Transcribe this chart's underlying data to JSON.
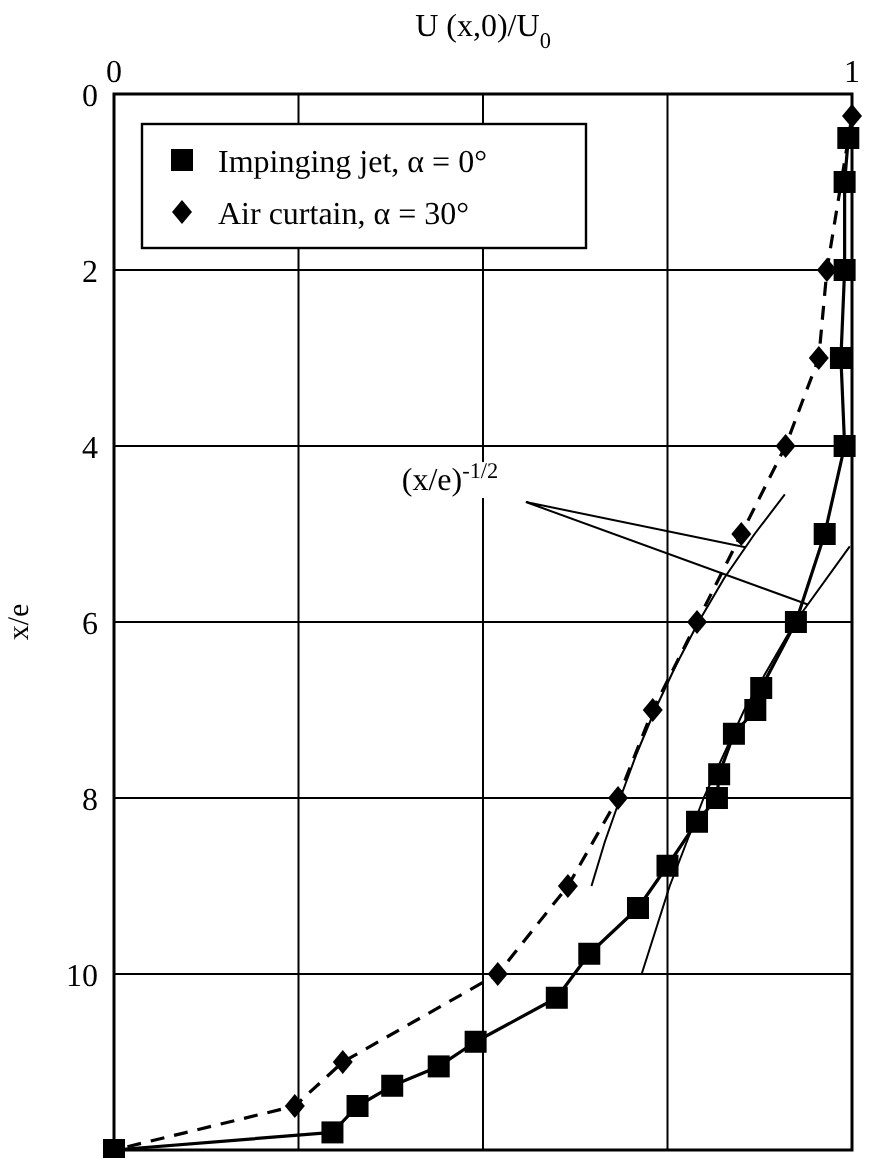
{
  "chart_data": {
    "type": "line",
    "xlabel": "U (x,0)/U$_{0}$",
    "ylabel": "x/e",
    "xlim": [
      0,
      1
    ],
    "xticks": [
      0,
      {
        "value": 0.25,
        "label": null
      },
      {
        "value": 0.5,
        "label": null
      },
      {
        "value": 0.75,
        "label": null
      },
      1
    ],
    "ylim": [
      12,
      0
    ],
    "yticks": [
      0,
      2,
      4,
      6,
      8,
      10,
      {
        "value": 12,
        "label": null
      }
    ],
    "grid": true,
    "legend": "top left",
    "annotations": [
      "(x/e)$^{-1/2}$"
    ],
    "series": [
      {
        "name": "Impinging jet, α = 0°",
        "color": "#000000",
        "marker": "square",
        "line_style": "solid",
        "x": [
          0.995,
          0.99,
          0.99,
          0.985,
          0.99,
          0.963,
          0.924,
          0.877,
          0.869,
          0.84,
          0.82,
          0.817,
          0.79,
          0.75,
          0.71,
          0.644,
          0.6,
          0.49,
          0.44,
          0.377,
          0.33,
          0.296,
          0
        ],
        "values": [
          0.5,
          1,
          2,
          3,
          4,
          5,
          6,
          6.75,
          7,
          7.27,
          7.73,
          8,
          8.27,
          8.77,
          9.25,
          9.77,
          10.27,
          10.77,
          11.05,
          11.27,
          11.5,
          11.8,
          12
        ]
      },
      {
        "name": "Air curtain, α = 30°",
        "color": "#000000",
        "marker": "diamond",
        "line_style": "dashed",
        "x": [
          1,
          0.966,
          0.955,
          0.91,
          0.85,
          0.79,
          0.73,
          0.683,
          0.615,
          0.52,
          0.31,
          0.245,
          0
        ],
        "values": [
          0.25,
          2,
          3,
          4,
          5,
          6,
          7,
          8,
          9,
          10,
          11,
          11.5,
          12
        ]
      },
      {
        "color": "#000000",
        "marker": "none",
        "line_style": "solid",
        "x": [
          0.909,
          0.868,
          0.827,
          0.792,
          0.761,
          0.733,
          0.708,
          0.686,
          0.665,
          0.647
        ],
        "values": [
          4.55,
          5,
          5.5,
          6,
          6.5,
          7,
          7.5,
          8,
          8.5,
          9
        ]
      },
      {
        "color": "#000000",
        "marker": "none",
        "line_style": "solid",
        "x": [
          0.997,
          0.923,
          0.854,
          0.799,
          0.753,
          0.715
        ],
        "values": [
          5.14,
          6,
          7,
          8,
          9,
          10
        ]
      }
    ]
  }
}
